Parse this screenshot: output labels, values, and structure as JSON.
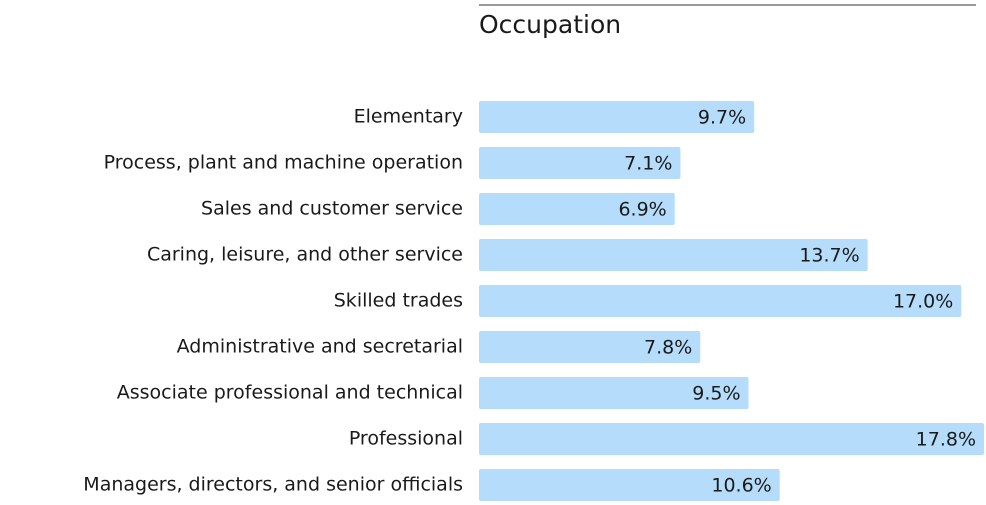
{
  "chart_data": {
    "type": "bar",
    "orientation": "horizontal",
    "title": "Occupation",
    "categories": [
      "Elementary",
      "Process, plant and machine operation",
      "Sales and customer service",
      "Caring, leisure, and other service",
      "Skilled trades",
      "Administrative and secretarial",
      "Associate  professional and technical",
      "Professional",
      "Managers, directors, and senior officials"
    ],
    "values": [
      9.7,
      7.1,
      6.9,
      13.7,
      17.0,
      7.8,
      9.5,
      17.8,
      10.6
    ],
    "value_labels": [
      "9.7%",
      "7.1%",
      "6.9%",
      "13.7%",
      "17.0%",
      "7.8%",
      "9.5%",
      "17.8%",
      "10.6%"
    ],
    "color": "#b5ddfb"
  }
}
